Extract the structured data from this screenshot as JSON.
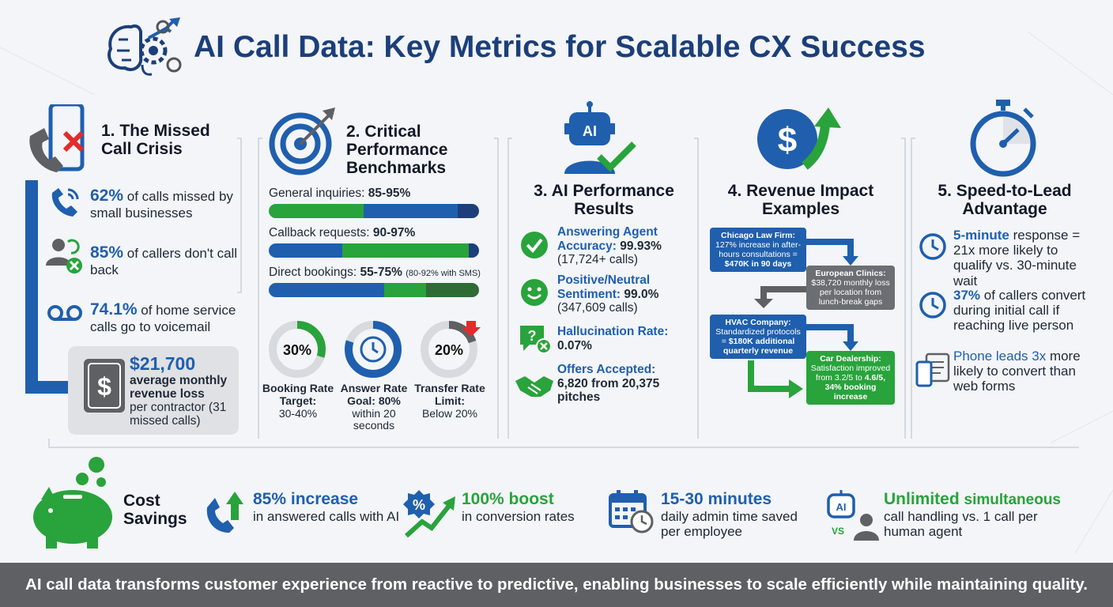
{
  "title": "AI Call Data: Key Metrics for Scalable CX Success",
  "colors": {
    "navy": "#1c3f7a",
    "blue": "#1f5fae",
    "green": "#29a33b",
    "grey_bar": "#5e6063"
  },
  "s1": {
    "heading": "1. The Missed Call Crisis",
    "items": [
      {
        "value": "62%",
        "text": "of calls missed by small businesses",
        "icon": "phone-ring-icon"
      },
      {
        "value": "85%",
        "text": "of callers don't call back",
        "icon": "person-x-icon"
      },
      {
        "value": "74.1%",
        "text": "of home service calls go to voicemail",
        "icon": "voicemail-icon"
      }
    ],
    "loss": {
      "value": "$21,700",
      "bold": "average monthly revenue loss",
      "rest": "per contractor (31 missed calls)"
    }
  },
  "s2": {
    "heading": "2. Critical Performance Benchmarks",
    "bars": [
      {
        "label": "General inquiries:",
        "value": "85-95%",
        "note": ""
      },
      {
        "label": "Callback requests:",
        "value": "90-97%",
        "note": ""
      },
      {
        "label": "Direct bookings:",
        "value": "55-75%",
        "note": "(80-92% with SMS)"
      }
    ],
    "rings": [
      {
        "center": "30%",
        "bold": "Booking Rate Target:",
        "rest": "30-40%",
        "fill": 0.3
      },
      {
        "center": "",
        "bold": "Answer Rate Goal:",
        "rest_bold": "80%",
        "rest": "within 20 seconds",
        "fill": 0.8
      },
      {
        "center": "20%",
        "bold": "Transfer Rate Limit:",
        "rest": "Below 20%",
        "fill": 0.2
      }
    ]
  },
  "s3": {
    "heading": "3. AI Performance Results",
    "icon_label": "AI",
    "items": [
      {
        "label": "Answering Agent Accuracy:",
        "value": "99.93%",
        "sub": "(17,724+ calls)"
      },
      {
        "label": "Positive/Neutral Sentiment:",
        "value": "99.0%",
        "sub": "(347,609 calls)"
      },
      {
        "label": "Hallucination Rate:",
        "value": "0.07%",
        "sub": ""
      },
      {
        "label": "Offers Accepted:",
        "value": "6,820 from 20,375 pitches",
        "sub": ""
      }
    ]
  },
  "s4": {
    "heading": "4. Revenue Impact Examples",
    "boxes": [
      {
        "title": "Chicago Law Firm:",
        "text": "127% increase in after-hours consultations =",
        "bold": "$470K in 90 days"
      },
      {
        "title": "European Clinics:",
        "text": "$38,720 monthly loss per location from lunch-break gaps",
        "bold": ""
      },
      {
        "title": "HVAC Company:",
        "text": "Standardized protocols =",
        "bold": "$180K additional quarterly revenue"
      },
      {
        "title": "Car Dealership:",
        "text": "Satisfaction improved from 3.2/5 to",
        "bold": "4.6/5, 34% booking increase"
      }
    ]
  },
  "s5": {
    "heading": "5. Speed-to-Lead Advantage",
    "items": [
      {
        "value": "5-minute",
        "text": "response = 21x more likely to qualify vs. 30-minute wait"
      },
      {
        "value": "37%",
        "text": "of callers convert during initial call if reaching live person"
      },
      {
        "value": "Phone leads 3x",
        "text": "more likely to convert than web forms"
      }
    ]
  },
  "savings": {
    "heading": "Cost Savings",
    "items": [
      {
        "value": "85% increase",
        "text": "in answered calls with AI"
      },
      {
        "value": "100% boost",
        "text": "in conversion rates"
      },
      {
        "value": "15-30 minutes",
        "text": "daily admin time saved per employee"
      },
      {
        "value": "Unlimited",
        "value2": "simultaneous",
        "text": "call handling vs. 1 call per human agent"
      }
    ],
    "vs": "VS"
  },
  "footer": "AI call data transforms customer experience from reactive to predictive, enabling businesses to scale efficiently while maintaining quality."
}
